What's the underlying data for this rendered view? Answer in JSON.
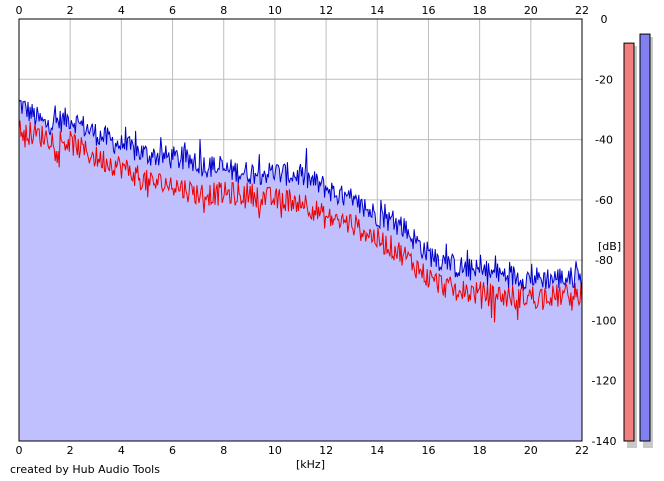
{
  "credit": "created by Hub Audio Tools",
  "chart_data": {
    "type": "line",
    "title": "",
    "xlabel": "[kHz]",
    "ylabel": "[dB]",
    "xlim": [
      0,
      22
    ],
    "ylim": [
      -140,
      0
    ],
    "x_ticks": [
      0,
      2,
      4,
      6,
      8,
      10,
      12,
      14,
      16,
      18,
      20,
      22
    ],
    "x_tick_labels": [
      "0",
      "2",
      "4",
      "6",
      "8",
      "10",
      "12",
      "14",
      "16",
      "18",
      "20",
      "22"
    ],
    "y_ticks": [
      0,
      -20,
      -40,
      -60,
      -80,
      -100,
      -120,
      -140
    ],
    "y_tick_labels": [
      "0",
      "-20",
      "-40",
      "-60",
      "-80",
      "-100",
      "-120",
      "-140"
    ],
    "grid": true,
    "colors": {
      "red_channel": "#ee0000",
      "blue_channel": "#0000cc",
      "fill": "#c0c0ff",
      "meter_red": "#f08080",
      "meter_blue": "#8080f0"
    },
    "x": [
      0,
      1,
      2,
      3,
      4,
      5,
      6,
      7,
      8,
      9,
      10,
      11,
      12,
      13,
      14,
      15,
      16,
      17,
      18,
      19,
      20,
      21,
      22
    ],
    "series": [
      {
        "color": "blue",
        "values": [
          -28,
          -35,
          -33,
          -38,
          -42,
          -45,
          -46,
          -48,
          -50,
          -51,
          -51,
          -52,
          -56,
          -61,
          -65,
          -69,
          -78,
          -82,
          -84,
          -85,
          -86,
          -86,
          -86
        ]
      },
      {
        "color": "red",
        "values": [
          -37,
          -39,
          -41,
          -46,
          -49,
          -54,
          -55,
          -58,
          -58,
          -58,
          -60,
          -60,
          -66,
          -68,
          -73,
          -78,
          -86,
          -90,
          -91,
          -92,
          -92,
          -92,
          -91
        ]
      }
    ],
    "level_meters": [
      {
        "color": "red",
        "level_db": -8
      },
      {
        "color": "blue",
        "level_db": -5
      }
    ]
  }
}
